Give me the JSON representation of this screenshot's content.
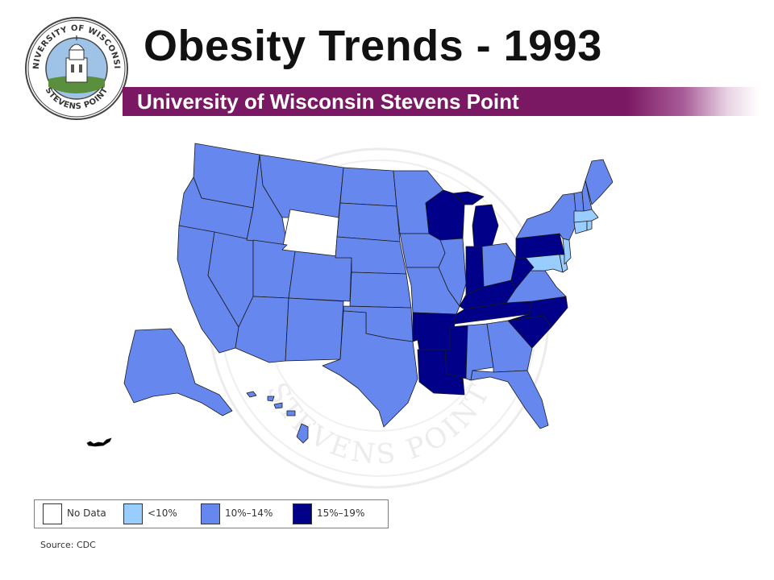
{
  "title": "Obesity Trends - 1993",
  "subtitle": "University of Wisconsin Stevens Point",
  "seal": {
    "top_text": "UNIVERSITY OF WISCONSIN",
    "bottom_text": "STEVENS POINT"
  },
  "watermark_text": "STEVENS POINT",
  "legend": [
    {
      "label": "No Data",
      "color": "#ffffff"
    },
    {
      "label": "<10%",
      "color": "#99ccff"
    },
    {
      "label": "10%–14%",
      "color": "#6688ee"
    },
    {
      "label": "15%–19%",
      "color": "#000088"
    }
  ],
  "source": "Source: CDC",
  "map_data": {
    "no_data": [
      "Wyoming"
    ],
    "under_10": [
      "Massachusetts",
      "Connecticut",
      "Rhode Island",
      "New Jersey",
      "Delaware",
      "Maryland"
    ],
    "10_to_14": [
      "Washington",
      "Oregon",
      "California",
      "Nevada",
      "Idaho",
      "Montana",
      "Utah",
      "Arizona",
      "Colorado",
      "New Mexico",
      "North Dakota",
      "South Dakota",
      "Nebraska",
      "Kansas",
      "Oklahoma",
      "Texas",
      "Minnesota",
      "Iowa",
      "Missouri",
      "Illinois",
      "Ohio",
      "Virginia",
      "New York",
      "Vermont",
      "New Hampshire",
      "Maine",
      "Alabama",
      "Georgia",
      "Florida",
      "Alaska",
      "Hawaii"
    ],
    "15_to_19": [
      "Wisconsin",
      "Michigan",
      "Indiana",
      "Kentucky",
      "West Virginia",
      "Pennsylvania",
      "Tennessee",
      "North Carolina",
      "South Carolina",
      "Arkansas",
      "Louisiana",
      "Mississippi"
    ]
  }
}
